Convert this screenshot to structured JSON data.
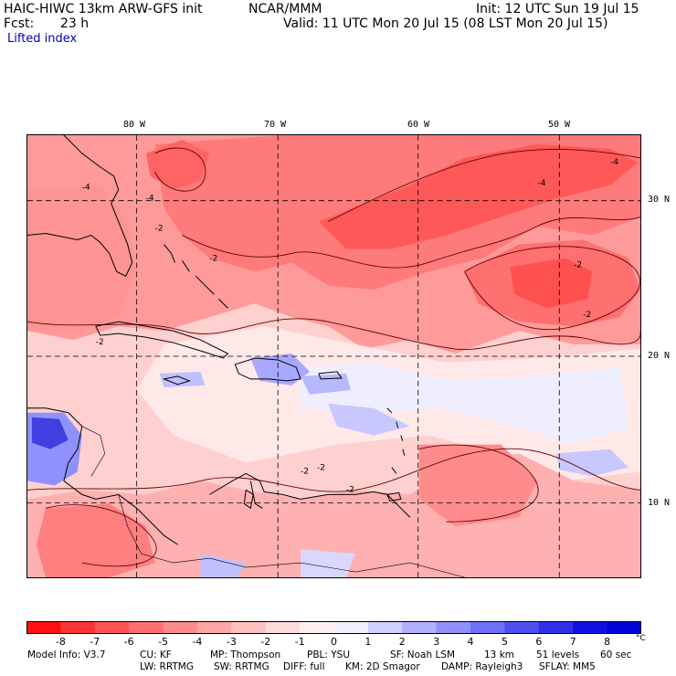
{
  "header": {
    "model": "HAIC-HIWC 13km ARW-GFS init",
    "org": "NCAR/MMM",
    "init": "Init: 12 UTC Sun 19 Jul 15",
    "fcst_label": "Fcst:",
    "fcst_value": "23 h",
    "valid": "Valid: 11 UTC Mon 20 Jul 15 (08 LST Mon 20 Jul 15)",
    "field": "Lifted index"
  },
  "axes": {
    "lon_labels": [
      "80 W",
      "70 W",
      "60 W",
      "50 W"
    ],
    "lat_labels": [
      "30 N",
      "20 N",
      "10 N"
    ]
  },
  "colorbar": {
    "labels": [
      "-8",
      "-7",
      "-6",
      "-5",
      "-4",
      "-3",
      "-2",
      "-1",
      "0",
      "1",
      "2",
      "3",
      "4",
      "5",
      "6",
      "7",
      "8"
    ],
    "unit": "°C",
    "colors": [
      "#ff1010",
      "#ff3535",
      "#ff5555",
      "#ff7070",
      "#ff8c8c",
      "#ffa6a6",
      "#ffc0c0",
      "#ffdada",
      "#fff0f0",
      "#f0f0ff",
      "#d0d0ff",
      "#b0b0ff",
      "#9090ff",
      "#7070f8",
      "#5050f0",
      "#3030e8",
      "#1010e0",
      "#0000d8"
    ]
  },
  "contour_labels": [
    "-4",
    "-4",
    "-4",
    "-4",
    "-2",
    "-2",
    "-2",
    "-2",
    "-2",
    "-2",
    "-2",
    "-2"
  ],
  "footer": {
    "line1": [
      "Model Info: V3.7",
      "CU: KF",
      "MP: Thompson",
      "PBL: YSU",
      "SF: Noah LSM",
      "13 km",
      "51 levels",
      "60 sec"
    ],
    "line2": [
      "LW: RRTMG",
      "SW: RRTMG",
      "DIFF: full",
      "KM: 2D Smagor",
      "DAMP: Rayleigh3",
      "SFLAY: MM5"
    ]
  }
}
